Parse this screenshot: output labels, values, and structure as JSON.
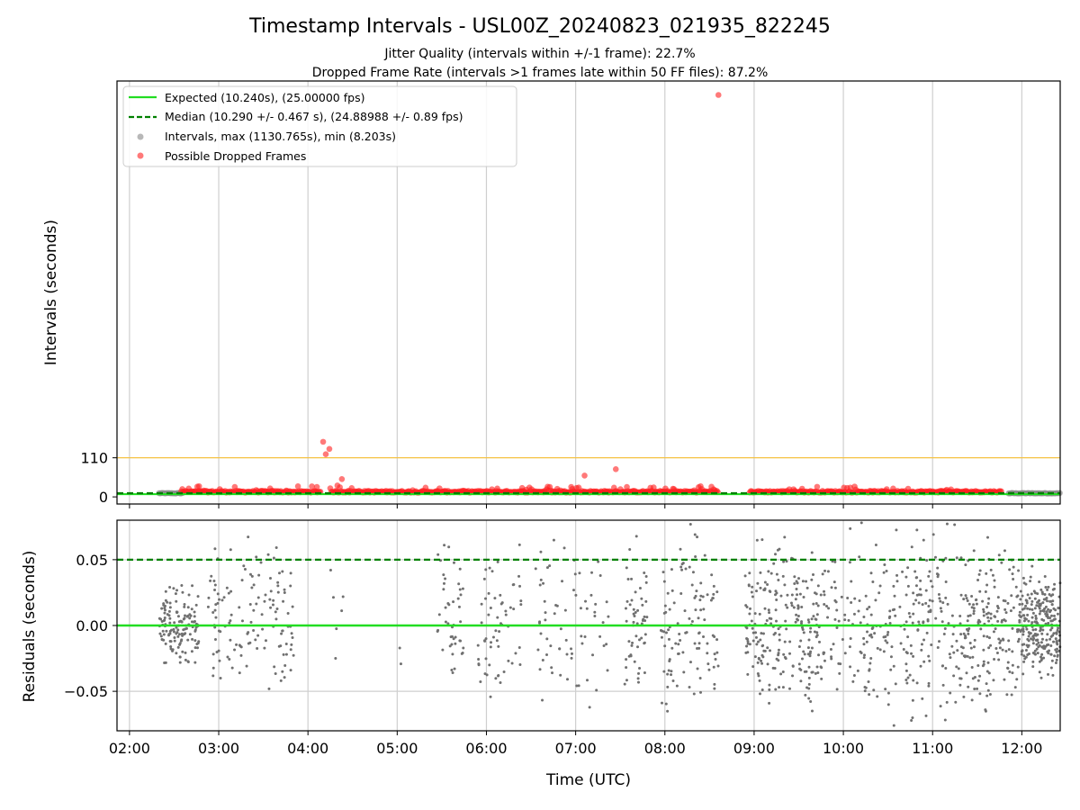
{
  "chart_data": [
    {
      "type": "scatter",
      "title": "Timestamp Intervals - USL00Z_20240823_021935_822245",
      "subtitle_lines": [
        "Jitter Quality (intervals within +/-1 frame): 22.7%",
        "Dropped Frame Rate (intervals >1 frames late within 50 FF files): 87.2%"
      ],
      "ylabel": "Intervals (seconds)",
      "xlim_hours": [
        1.86,
        12.43
      ],
      "ylim": [
        -20,
        1170
      ],
      "y_ticks": [
        0,
        110
      ],
      "y_tick_labels": [
        "0",
        "110"
      ],
      "x_ticks_hours": [
        2,
        3,
        4,
        5,
        6,
        7,
        8,
        9,
        10,
        11,
        12
      ],
      "x_tick_labels": [
        "02:00",
        "03:00",
        "04:00",
        "05:00",
        "06:00",
        "07:00",
        "08:00",
        "09:00",
        "10:00",
        "11:00",
        "12:00"
      ],
      "grid": "vertical",
      "legend_placement": "top-left",
      "reference_lines": [
        {
          "name": "Expected (10.240s), (25.00000 fps)",
          "value": 10.24,
          "color": "#22dd22",
          "style": "solid"
        },
        {
          "name": "Median (10.290 +/- 0.467 s), (24.88988 +/- 0.89 fps)",
          "value": 10.29,
          "color": "#008000",
          "style": "dashed"
        },
        {
          "name": "",
          "value": 110,
          "color": "#f5c242",
          "style": "solid-thin"
        }
      ],
      "series": [
        {
          "name": "Intervals, max (1130.765s), min (8.203s)",
          "color": "#888888",
          "segments_hours": [
            [
              2.33,
              2.6
            ],
            [
              11.85,
              12.43
            ]
          ],
          "typical_value": 10.24
        },
        {
          "name": "Possible Dropped Frames",
          "color": "#ff2020",
          "dense_segments_hours": [
            [
              2.58,
              4.15
            ],
            [
              4.25,
              8.6
            ],
            [
              8.95,
              11.78
            ]
          ],
          "typical_value": 12,
          "outliers": [
            {
              "x": 4.17,
              "y": 155
            },
            {
              "x": 4.2,
              "y": 120
            },
            {
              "x": 4.24,
              "y": 135
            },
            {
              "x": 4.38,
              "y": 50
            },
            {
              "x": 4.33,
              "y": 32
            },
            {
              "x": 4.1,
              "y": 28
            },
            {
              "x": 2.78,
              "y": 30
            },
            {
              "x": 7.1,
              "y": 60
            },
            {
              "x": 7.45,
              "y": 78
            },
            {
              "x": 6.95,
              "y": 28
            },
            {
              "x": 8.4,
              "y": 30
            },
            {
              "x": 6.4,
              "y": 25
            },
            {
              "x": 8.6,
              "y": 1130.765
            }
          ]
        }
      ]
    },
    {
      "type": "scatter",
      "ylabel": "Residuals (seconds)",
      "xlabel": "Time (UTC)",
      "xlim_hours": [
        1.86,
        12.43
      ],
      "ylim": [
        -0.08,
        0.08
      ],
      "y_ticks": [
        -0.05,
        0.0,
        0.05
      ],
      "y_tick_labels": [
        "−0.05",
        "0.00",
        "0.05"
      ],
      "x_ticks_hours": [
        2,
        3,
        4,
        5,
        6,
        7,
        8,
        9,
        10,
        11,
        12
      ],
      "x_tick_labels": [
        "02:00",
        "03:00",
        "04:00",
        "05:00",
        "06:00",
        "07:00",
        "08:00",
        "09:00",
        "10:00",
        "11:00",
        "12:00"
      ],
      "grid": "both",
      "reference_lines": [
        {
          "value": 0.0,
          "color": "#22dd22",
          "style": "solid"
        },
        {
          "value": 0.05,
          "color": "#008000",
          "style": "dashed"
        }
      ],
      "series": [
        {
          "color": "#707070",
          "clusters": [
            {
              "from": 2.33,
              "to": 2.78,
              "count": 140,
              "spread": 0.03
            },
            {
              "from": 2.88,
              "to": 3.85,
              "count": 130,
              "spread": 0.06
            },
            {
              "from": 4.25,
              "to": 4.4,
              "count": 6,
              "spread": 0.06
            },
            {
              "from": 4.95,
              "to": 5.05,
              "count": 2,
              "spread": 0.07
            },
            {
              "from": 5.45,
              "to": 5.75,
              "count": 45,
              "spread": 0.07
            },
            {
              "from": 5.9,
              "to": 6.4,
              "count": 60,
              "spread": 0.07
            },
            {
              "from": 6.55,
              "to": 7.4,
              "count": 70,
              "spread": 0.07
            },
            {
              "from": 7.55,
              "to": 7.8,
              "count": 55,
              "spread": 0.06
            },
            {
              "from": 7.95,
              "to": 8.6,
              "count": 110,
              "spread": 0.07
            },
            {
              "from": 8.9,
              "to": 9.75,
              "count": 230,
              "spread": 0.07
            },
            {
              "from": 9.75,
              "to": 10.7,
              "count": 140,
              "spread": 0.075
            },
            {
              "from": 10.7,
              "to": 11.45,
              "count": 170,
              "spread": 0.075
            },
            {
              "from": 11.45,
              "to": 11.95,
              "count": 130,
              "spread": 0.07
            },
            {
              "from": 11.95,
              "to": 12.43,
              "count": 260,
              "spread": 0.04
            }
          ]
        }
      ]
    }
  ]
}
